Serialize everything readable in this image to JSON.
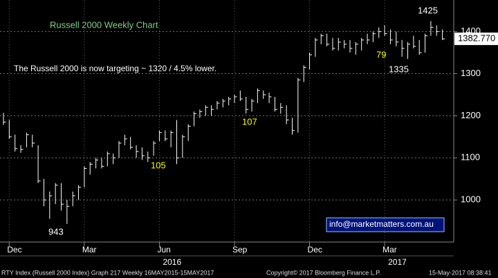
{
  "chart_data": {
    "type": "ohlc",
    "title": "Russell 2000 Weekly Chart",
    "subtitle": "The Russell 2000 is now targeting ~ 1320 / 4.5% lower.",
    "color": "#ffffff",
    "categories": [
      null,
      "Dec",
      null,
      null,
      null,
      null,
      null,
      null,
      null,
      null,
      null,
      null,
      null,
      null,
      "Mar",
      null,
      null,
      null,
      null,
      null,
      null,
      null,
      null,
      null,
      null,
      null,
      null,
      "Jun",
      null,
      null,
      null,
      null,
      null,
      null,
      null,
      null,
      null,
      null,
      null,
      null,
      "Sep",
      null,
      null,
      null,
      null,
      null,
      null,
      null,
      null,
      null,
      null,
      null,
      null,
      "Dec",
      null,
      null,
      null,
      null,
      null,
      null,
      null,
      null,
      null,
      null,
      null,
      null,
      "Mar",
      null,
      null,
      null,
      null,
      null,
      null,
      null,
      null,
      null,
      null
    ],
    "years": [
      {
        "label": "2016",
        "index": 27
      },
      {
        "label": "2017",
        "index": 66
      }
    ],
    "high": [
      1207,
      1190,
      1155,
      1130,
      1160,
      1155,
      1130,
      1050,
      1020,
      1040,
      1040,
      1000,
      1020,
      1035,
      1080,
      1090,
      1100,
      1100,
      1115,
      1110,
      1140,
      1155,
      1150,
      1130,
      1125,
      1115,
      1140,
      1165,
      1165,
      1165,
      1190,
      1155,
      1180,
      1210,
      1215,
      1225,
      1225,
      1235,
      1240,
      1245,
      1250,
      1260,
      1245,
      1240,
      1265,
      1260,
      1255,
      1245,
      1230,
      1225,
      1195,
      1290,
      1320,
      1350,
      1385,
      1395,
      1395,
      1385,
      1385,
      1380,
      1380,
      1375,
      1385,
      1395,
      1400,
      1410,
      1415,
      1405,
      1400,
      1380,
      1375,
      1390,
      1380,
      1395,
      1425,
      1415,
      1405
    ],
    "low": [
      1178,
      1145,
      1115,
      1112,
      1125,
      1125,
      1040,
      985,
      955,
      990,
      975,
      943,
      985,
      1000,
      1030,
      1060,
      1075,
      1075,
      1080,
      1085,
      1100,
      1130,
      1120,
      1100,
      1095,
      1090,
      1105,
      1140,
      1140,
      1125,
      1085,
      1100,
      1140,
      1175,
      1195,
      1200,
      1200,
      1215,
      1220,
      1225,
      1230,
      1235,
      1205,
      1210,
      1230,
      1240,
      1230,
      1210,
      1205,
      1180,
      1155,
      1160,
      1280,
      1310,
      1340,
      1370,
      1365,
      1355,
      1355,
      1360,
      1350,
      1345,
      1355,
      1370,
      1375,
      1385,
      1390,
      1370,
      1365,
      1340,
      1335,
      1360,
      1345,
      1350,
      1390,
      1390,
      1380
    ],
    "close": [
      1185,
      1150,
      1122,
      1120,
      1155,
      1135,
      1045,
      1000,
      1010,
      1035,
      990,
      985,
      1010,
      1030,
      1075,
      1085,
      1095,
      1080,
      1110,
      1100,
      1135,
      1145,
      1125,
      1115,
      1105,
      1100,
      1135,
      1160,
      1145,
      1160,
      1100,
      1150,
      1175,
      1205,
      1210,
      1220,
      1215,
      1230,
      1235,
      1240,
      1245,
      1240,
      1215,
      1235,
      1260,
      1250,
      1245,
      1215,
      1220,
      1190,
      1165,
      1285,
      1315,
      1345,
      1380,
      1390,
      1370,
      1360,
      1375,
      1370,
      1360,
      1370,
      1380,
      1380,
      1395,
      1400,
      1395,
      1380,
      1375,
      1360,
      1370,
      1365,
      1350,
      1390,
      1410,
      1400,
      1382.77
    ],
    "last_price": {
      "value": 1382.77,
      "label": "1382.770"
    },
    "ylim": [
      900,
      1475
    ],
    "yticks": [
      1000,
      1100,
      1200,
      1300,
      1400
    ],
    "grid": true,
    "annotations": [
      {
        "text": "1425",
        "color": "#ffffff"
      },
      {
        "text": "943",
        "color": "#ffffff"
      },
      {
        "text": "105",
        "color": "#ffff00"
      },
      {
        "text": "107",
        "color": "#ffff00"
      },
      {
        "text": "79",
        "color": "#ffff00"
      },
      {
        "text": "1335",
        "color": "#ffffff"
      }
    ],
    "contact": "info@marketmatters.com.au",
    "footer": {
      "left": "RTY Index (Russell 2000 Index) Graph 217  Weekly 16MAY2015-15MAY2017",
      "center": "Copyright© 2017 Bloomberg Finance L.P.",
      "right": "15-May-2017 08:38:41"
    }
  }
}
